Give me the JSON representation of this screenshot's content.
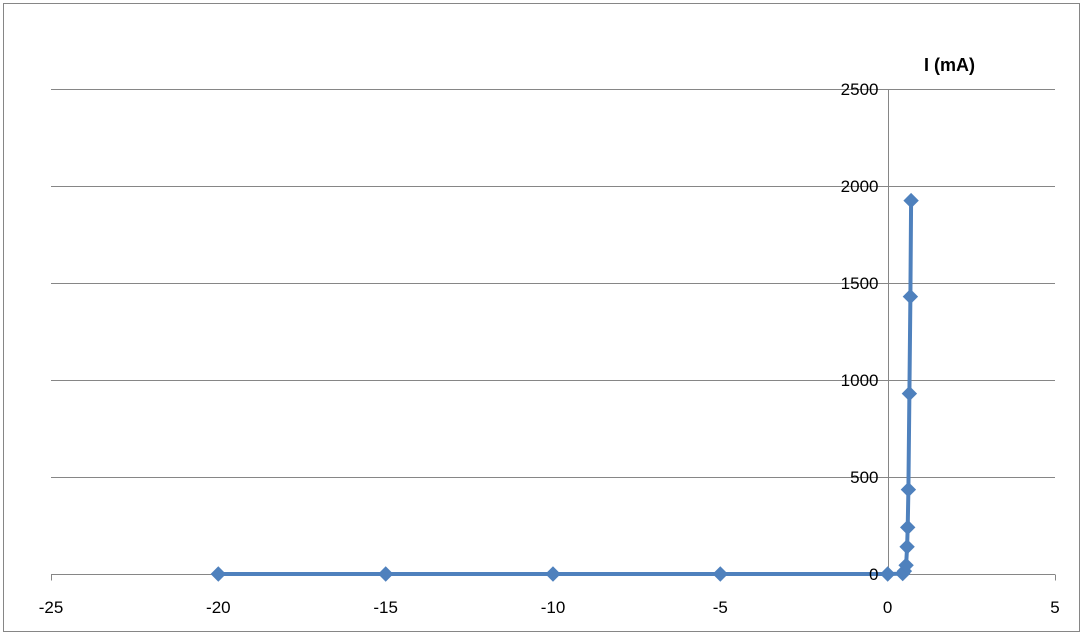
{
  "chart_data": {
    "type": "scatter",
    "title": "",
    "xlabel": "",
    "ylabel": "I (mA)",
    "xlim": [
      -25,
      5
    ],
    "ylim": [
      0,
      2500
    ],
    "xticks": [
      -25,
      -20,
      -15,
      -10,
      -5,
      0,
      5
    ],
    "yticks": [
      0,
      500,
      1000,
      1500,
      2000,
      2500
    ],
    "xtick_labels": [
      "-25",
      "-20",
      "-15",
      "-10",
      "-5",
      "0",
      "5"
    ],
    "ytick_labels": [
      "0",
      "500",
      "1000",
      "1500",
      "2000",
      "2500"
    ],
    "grid": {
      "horizontal": true,
      "vertical": false
    },
    "legend": "none",
    "marker": "diamond",
    "line": "straight",
    "series_color": "#4F81BD",
    "series": [
      {
        "points": [
          {
            "x": -20,
            "y": 0
          },
          {
            "x": -15,
            "y": 0
          },
          {
            "x": -10,
            "y": 0
          },
          {
            "x": -5,
            "y": 0
          },
          {
            "x": 0,
            "y": 0
          },
          {
            "x": 0.45,
            "y": 2
          },
          {
            "x": 0.5,
            "y": 15
          },
          {
            "x": 0.55,
            "y": 45
          },
          {
            "x": 0.58,
            "y": 140
          },
          {
            "x": 0.6,
            "y": 240
          },
          {
            "x": 0.62,
            "y": 435
          },
          {
            "x": 0.65,
            "y": 930
          },
          {
            "x": 0.68,
            "y": 1430
          },
          {
            "x": 0.7,
            "y": 1925
          }
        ]
      }
    ]
  }
}
